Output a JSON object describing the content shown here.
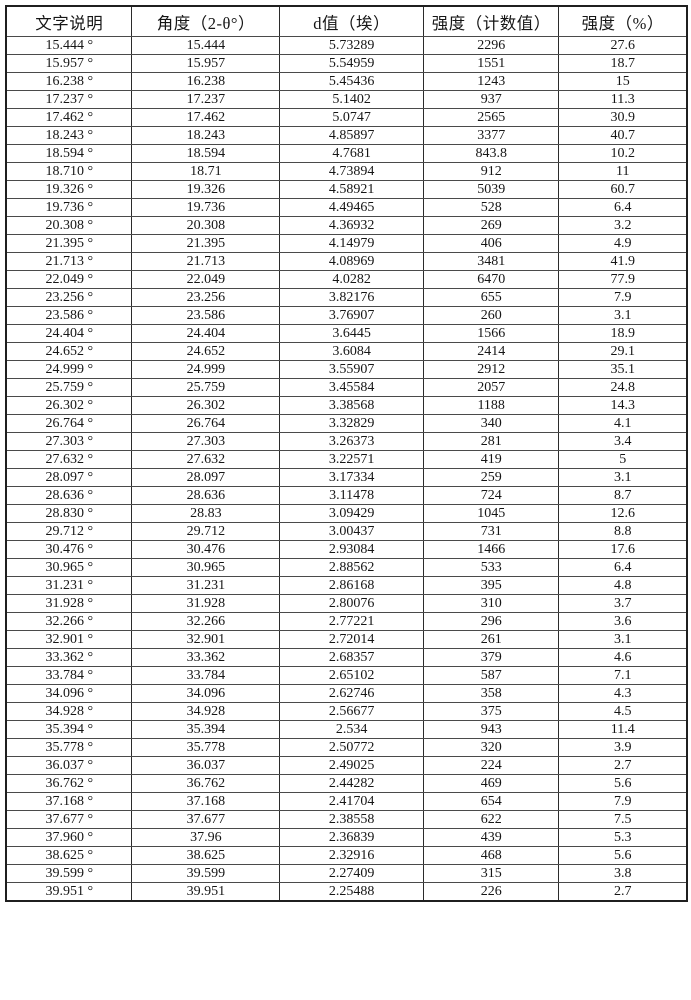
{
  "colors": {
    "background": "#ffffff",
    "text": "#161616",
    "border_outer": "#1f1f1f",
    "border_inner": "#4a4a4a"
  },
  "table": {
    "headers": [
      "文字说明",
      "角度（2-θ°）",
      "d值（埃）",
      "强度（计数值）",
      "强度（%）"
    ],
    "rows": [
      [
        "15.444 °",
        "15.444",
        "5.73289",
        "2296",
        "27.6"
      ],
      [
        "15.957 °",
        "15.957",
        "5.54959",
        "1551",
        "18.7"
      ],
      [
        "16.238 °",
        "16.238",
        "5.45436",
        "1243",
        "15"
      ],
      [
        "17.237 °",
        "17.237",
        "5.1402",
        "937",
        "11.3"
      ],
      [
        "17.462 °",
        "17.462",
        "5.0747",
        "2565",
        "30.9"
      ],
      [
        "18.243 °",
        "18.243",
        "4.85897",
        "3377",
        "40.7"
      ],
      [
        "18.594 °",
        "18.594",
        "4.7681",
        "843.8",
        "10.2"
      ],
      [
        "18.710 °",
        "18.71",
        "4.73894",
        "912",
        "11"
      ],
      [
        "19.326 °",
        "19.326",
        "4.58921",
        "5039",
        "60.7"
      ],
      [
        "19.736 °",
        "19.736",
        "4.49465",
        "528",
        "6.4"
      ],
      [
        "20.308 °",
        "20.308",
        "4.36932",
        "269",
        "3.2"
      ],
      [
        "21.395 °",
        "21.395",
        "4.14979",
        "406",
        "4.9"
      ],
      [
        "21.713 °",
        "21.713",
        "4.08969",
        "3481",
        "41.9"
      ],
      [
        "22.049 °",
        "22.049",
        "4.0282",
        "6470",
        "77.9"
      ],
      [
        "23.256 °",
        "23.256",
        "3.82176",
        "655",
        "7.9"
      ],
      [
        "23.586 °",
        "23.586",
        "3.76907",
        "260",
        "3.1"
      ],
      [
        "24.404 °",
        "24.404",
        "3.6445",
        "1566",
        "18.9"
      ],
      [
        "24.652 °",
        "24.652",
        "3.6084",
        "2414",
        "29.1"
      ],
      [
        "24.999 °",
        "24.999",
        "3.55907",
        "2912",
        "35.1"
      ],
      [
        "25.759 °",
        "25.759",
        "3.45584",
        "2057",
        "24.8"
      ],
      [
        "26.302 °",
        "26.302",
        "3.38568",
        "1188",
        "14.3"
      ],
      [
        "26.764 °",
        "26.764",
        "3.32829",
        "340",
        "4.1"
      ],
      [
        "27.303 °",
        "27.303",
        "3.26373",
        "281",
        "3.4"
      ],
      [
        "27.632 °",
        "27.632",
        "3.22571",
        "419",
        "5"
      ],
      [
        "28.097 °",
        "28.097",
        "3.17334",
        "259",
        "3.1"
      ],
      [
        "28.636 °",
        "28.636",
        "3.11478",
        "724",
        "8.7"
      ],
      [
        "28.830 °",
        "28.83",
        "3.09429",
        "1045",
        "12.6"
      ],
      [
        "29.712 °",
        "29.712",
        "3.00437",
        "731",
        "8.8"
      ],
      [
        "30.476 °",
        "30.476",
        "2.93084",
        "1466",
        "17.6"
      ],
      [
        "30.965 °",
        "30.965",
        "2.88562",
        "533",
        "6.4"
      ],
      [
        "31.231 °",
        "31.231",
        "2.86168",
        "395",
        "4.8"
      ],
      [
        "31.928 °",
        "31.928",
        "2.80076",
        "310",
        "3.7"
      ],
      [
        "32.266 °",
        "32.266",
        "2.77221",
        "296",
        "3.6"
      ],
      [
        "32.901 °",
        "32.901",
        "2.72014",
        "261",
        "3.1"
      ],
      [
        "33.362 °",
        "33.362",
        "2.68357",
        "379",
        "4.6"
      ],
      [
        "33.784 °",
        "33.784",
        "2.65102",
        "587",
        "7.1"
      ],
      [
        "34.096 °",
        "34.096",
        "2.62746",
        "358",
        "4.3"
      ],
      [
        "34.928 °",
        "34.928",
        "2.56677",
        "375",
        "4.5"
      ],
      [
        "35.394 °",
        "35.394",
        "2.534",
        "943",
        "11.4"
      ],
      [
        "35.778 °",
        "35.778",
        "2.50772",
        "320",
        "3.9"
      ],
      [
        "36.037 °",
        "36.037",
        "2.49025",
        "224",
        "2.7"
      ],
      [
        "36.762 °",
        "36.762",
        "2.44282",
        "469",
        "5.6"
      ],
      [
        "37.168 °",
        "37.168",
        "2.41704",
        "654",
        "7.9"
      ],
      [
        "37.677 °",
        "37.677",
        "2.38558",
        "622",
        "7.5"
      ],
      [
        "37.960 °",
        "37.96",
        "2.36839",
        "439",
        "5.3"
      ],
      [
        "38.625 °",
        "38.625",
        "2.32916",
        "468",
        "5.6"
      ],
      [
        "39.599 °",
        "39.599",
        "2.27409",
        "315",
        "3.8"
      ],
      [
        "39.951 °",
        "39.951",
        "2.25488",
        "226",
        "2.7"
      ]
    ]
  }
}
